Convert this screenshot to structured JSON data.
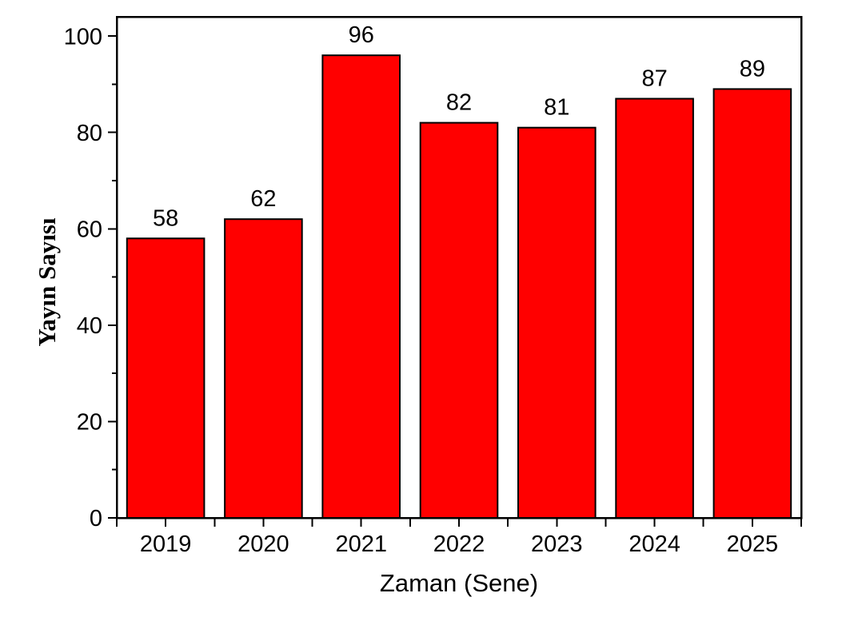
{
  "chart_data": {
    "type": "bar",
    "title": "",
    "categories": [
      "2019",
      "2020",
      "2021",
      "2022",
      "2023",
      "2024",
      "2025"
    ],
    "values": [
      58,
      62,
      96,
      82,
      81,
      87,
      89
    ],
    "xlabel": "Zaman (Sene)",
    "ylabel": "Yayın Sayısı",
    "ylim": [
      0,
      104
    ],
    "yticks": [
      0,
      20,
      40,
      60,
      80,
      100
    ],
    "ytick_minor_step": 10,
    "bar_value_labels": true,
    "grid": false,
    "legend": "none",
    "frame": "full-box",
    "colors": {
      "bar_fill": "#ff0000",
      "bar_stroke": "#000000",
      "axis": "#000000",
      "text": "#000000",
      "background": "#ffffff"
    }
  }
}
